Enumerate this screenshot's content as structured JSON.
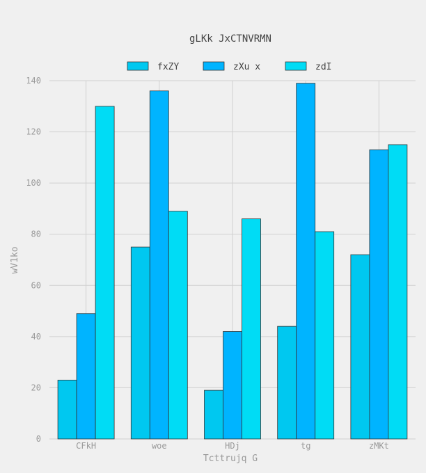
{
  "chart_data": {
    "type": "bar",
    "title": "gLKk JxCTNVRMN",
    "xlabel": "Tcttrujq G",
    "ylabel": "wV1ko",
    "categories": [
      "CFkH",
      "woe",
      "HDj",
      "tg",
      "zMKt"
    ],
    "series": [
      {
        "name": "fxZY",
        "values": [
          23,
          75,
          19,
          44,
          72
        ],
        "color": "#00c8f0"
      },
      {
        "name": "zXu x",
        "values": [
          49,
          136,
          42,
          139,
          113
        ],
        "color": "#00b4ff"
      },
      {
        "name": "zdI",
        "values": [
          130,
          89,
          86,
          81,
          115
        ],
        "color": "#00dcf5"
      }
    ],
    "ylim": [
      0,
      140
    ],
    "yticks": [
      0,
      20,
      40,
      60,
      80,
      100,
      120,
      140
    ],
    "grid": true,
    "legend_position": "top-center"
  }
}
